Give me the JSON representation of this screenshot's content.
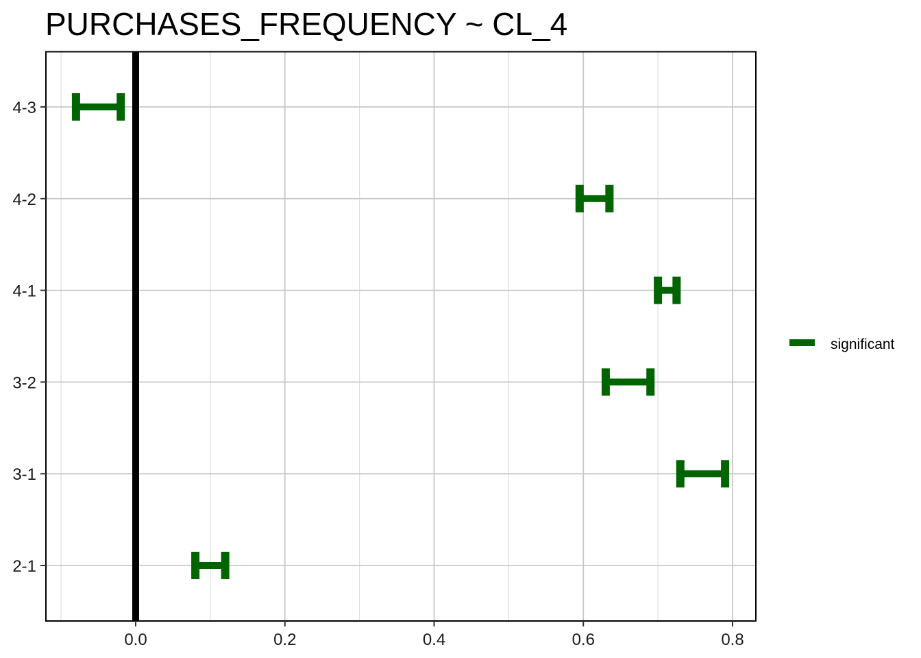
{
  "chart_data": {
    "type": "errorbar",
    "title": "PURCHASES_FREQUENCY  ~ CL_4",
    "xlabel": "",
    "ylabel": "",
    "xlim": [
      -0.1,
      0.8
    ],
    "x_ticks": [
      0.0,
      0.2,
      0.4,
      0.6,
      0.8
    ],
    "x_tick_labels": [
      "0.0",
      "0.2",
      "0.4",
      "0.6",
      "0.8"
    ],
    "grid": true,
    "reference_line": 0,
    "categories": [
      "4-3",
      "4-2",
      "4-1",
      "3-2",
      "3-1",
      "2-1"
    ],
    "series": [
      {
        "name": "significant",
        "color": "#006400",
        "lower": [
          -0.08,
          0.595,
          0.7,
          0.63,
          0.73,
          0.08
        ],
        "upper": [
          -0.02,
          0.635,
          0.725,
          0.69,
          0.79,
          0.12
        ]
      }
    ],
    "legend": {
      "placement": "right",
      "entries": [
        "significant"
      ]
    }
  }
}
